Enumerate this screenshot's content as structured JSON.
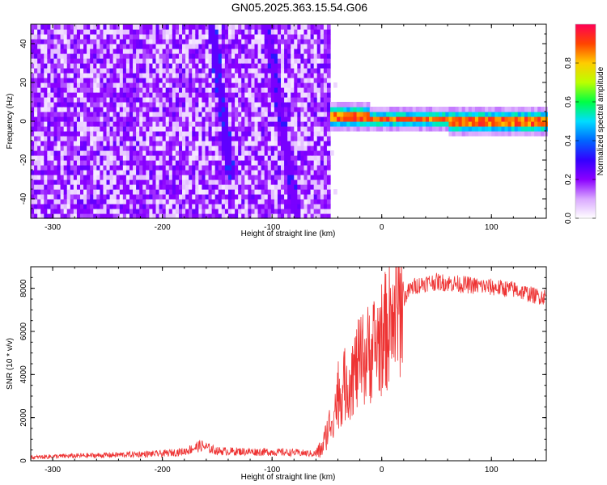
{
  "figure_title": "GN05.2025.363.15.54.G06",
  "chart_data": [
    {
      "type": "heatmap",
      "title": "",
      "xlabel": "Height of straight line (km)",
      "ylabel": "Frequency (Hz)",
      "xlim": [
        -320,
        150
      ],
      "ylim": [
        -50,
        50
      ],
      "xticks": [
        -300,
        -200,
        -100,
        0,
        100
      ],
      "yticks": [
        -40,
        -20,
        0,
        20,
        40
      ],
      "colorbar": {
        "label": "Normalized spectral amplitude",
        "range": [
          0,
          1
        ],
        "ticks": [
          0.0,
          0.2,
          0.4,
          0.6,
          0.8
        ],
        "tick_labels": [
          "0.0",
          "0.2",
          "0.4",
          "0.6",
          "0.8"
        ],
        "colormap": [
          "#ffffff",
          "#d9a8ff",
          "#8b00ff",
          "#3300ff",
          "#0066ff",
          "#00ddff",
          "#00ff44",
          "#bbff00",
          "#ffcc00",
          "#ff4400",
          "#ff0055"
        ]
      },
      "features": {
        "noise_region_x": [
          -320,
          -48
        ],
        "noise_level": 0.15,
        "tone_x": [
          -48,
          150
        ],
        "tone_freq_start": 3,
        "tone_freq_mid": 1,
        "tone_freq_end": 0.3,
        "tone_amplitude": 0.95,
        "streaks": [
          {
            "x_top": -155,
            "x_bottom": -137,
            "y_top": 50,
            "y_bottom": -30,
            "amplitude": 0.25
          },
          {
            "x_top": -105,
            "x_bottom": -77,
            "y_top": 50,
            "y_bottom": -50,
            "amplitude": 0.22
          }
        ]
      }
    },
    {
      "type": "line",
      "title": "",
      "xlabel": "Height of straight line (km)",
      "ylabel": "SNR (10 * v/v)",
      "xlim": [
        -320,
        150
      ],
      "ylim": [
        0,
        9000
      ],
      "xticks": [
        -300,
        -200,
        -100,
        0,
        100
      ],
      "yticks": [
        0,
        2000,
        4000,
        6000,
        8000
      ],
      "color": "#ee3333",
      "series": [
        {
          "x": [
            -320,
            -300,
            -250,
            -200,
            -180,
            -165,
            -150,
            -120,
            -100,
            -80,
            -62,
            -55,
            -50,
            -45,
            -40,
            -35,
            -30,
            -25,
            -20,
            -15,
            -10,
            -5,
            0,
            5,
            10,
            15,
            20,
            25,
            30,
            40,
            50,
            60,
            70,
            80,
            90,
            100,
            110,
            120,
            130,
            140,
            150
          ],
          "values": [
            150,
            200,
            260,
            330,
            430,
            700,
            450,
            420,
            400,
            380,
            320,
            500,
            1300,
            2100,
            2900,
            3400,
            3700,
            4100,
            4500,
            4800,
            5100,
            5400,
            5700,
            6100,
            6600,
            7000,
            7500,
            7900,
            8100,
            8250,
            8300,
            8250,
            8200,
            8150,
            8100,
            8050,
            8000,
            7950,
            7800,
            7650,
            7600
          ]
        }
      ]
    }
  ]
}
